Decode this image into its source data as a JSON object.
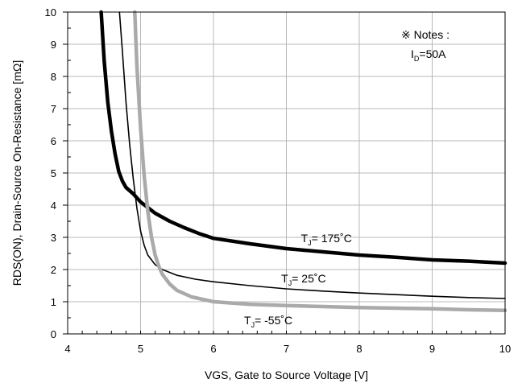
{
  "chart_data": {
    "type": "line",
    "xlabel": "VGS, Gate to Source Voltage [V]",
    "ylabel": "RDS(ON), Drain-Source On-Resistance [mΩ]",
    "xlim": [
      4,
      10
    ],
    "ylim": [
      0,
      10
    ],
    "x_ticks": [
      "4",
      "5",
      "6",
      "7",
      "8",
      "9",
      "10"
    ],
    "y_ticks": [
      "0",
      "1",
      "2",
      "3",
      "4",
      "5",
      "6",
      "7",
      "8",
      "9",
      "10"
    ],
    "grid": true,
    "notes": {
      "line1": "※ Notes :",
      "main": "I",
      "sub": "D",
      "rest": "=50A"
    },
    "series": [
      {
        "name": "TJ= 175°C",
        "label": {
          "main": "T",
          "sub": "J",
          "rest": "= 175˚C",
          "x": 7.2,
          "y": 2.85
        },
        "color": "#000000",
        "width": 4.5,
        "points": [
          [
            4.46,
            10
          ],
          [
            4.5,
            8.5
          ],
          [
            4.55,
            7.2
          ],
          [
            4.6,
            6.3
          ],
          [
            4.65,
            5.6
          ],
          [
            4.7,
            5.05
          ],
          [
            4.75,
            4.75
          ],
          [
            4.8,
            4.55
          ],
          [
            4.9,
            4.35
          ],
          [
            5.0,
            4.1
          ],
          [
            5.2,
            3.75
          ],
          [
            5.4,
            3.5
          ],
          [
            5.6,
            3.3
          ],
          [
            5.8,
            3.12
          ],
          [
            6.0,
            2.97
          ],
          [
            6.5,
            2.8
          ],
          [
            7.0,
            2.65
          ],
          [
            7.5,
            2.55
          ],
          [
            8.0,
            2.45
          ],
          [
            8.5,
            2.38
          ],
          [
            9.0,
            2.3
          ],
          [
            9.5,
            2.26
          ],
          [
            10.0,
            2.2
          ]
        ]
      },
      {
        "name": "TJ= 25°C",
        "label": {
          "main": "T",
          "sub": "J",
          "rest": "= 25˚C",
          "x": 6.93,
          "y": 1.6
        },
        "color": "#000000",
        "width": 1.6,
        "points": [
          [
            4.71,
            10
          ],
          [
            4.75,
            8.8
          ],
          [
            4.8,
            7.2
          ],
          [
            4.85,
            5.9
          ],
          [
            4.9,
            4.8
          ],
          [
            4.95,
            3.9
          ],
          [
            5.0,
            3.2
          ],
          [
            5.05,
            2.75
          ],
          [
            5.1,
            2.45
          ],
          [
            5.2,
            2.15
          ],
          [
            5.3,
            2.0
          ],
          [
            5.5,
            1.82
          ],
          [
            5.75,
            1.7
          ],
          [
            6.0,
            1.62
          ],
          [
            6.5,
            1.5
          ],
          [
            7.0,
            1.4
          ],
          [
            7.5,
            1.33
          ],
          [
            8.0,
            1.27
          ],
          [
            8.5,
            1.22
          ],
          [
            9.0,
            1.17
          ],
          [
            9.5,
            1.13
          ],
          [
            10.0,
            1.1
          ]
        ]
      },
      {
        "name": "TJ= -55°C",
        "label": {
          "main": "T",
          "sub": "J",
          "rest": "= -55˚C",
          "x": 6.42,
          "y": 0.3
        },
        "color": "#aaaaaa",
        "width": 4.5,
        "points": [
          [
            4.92,
            10
          ],
          [
            4.95,
            8.3
          ],
          [
            5.0,
            6.4
          ],
          [
            5.05,
            4.9
          ],
          [
            5.1,
            3.8
          ],
          [
            5.15,
            3.0
          ],
          [
            5.2,
            2.45
          ],
          [
            5.25,
            2.1
          ],
          [
            5.3,
            1.85
          ],
          [
            5.4,
            1.55
          ],
          [
            5.5,
            1.35
          ],
          [
            5.7,
            1.15
          ],
          [
            6.0,
            1.0
          ],
          [
            6.5,
            0.92
          ],
          [
            7.0,
            0.88
          ],
          [
            7.5,
            0.85
          ],
          [
            8.0,
            0.82
          ],
          [
            8.5,
            0.8
          ],
          [
            9.0,
            0.78
          ],
          [
            9.5,
            0.75
          ],
          [
            10.0,
            0.73
          ]
        ]
      }
    ]
  }
}
